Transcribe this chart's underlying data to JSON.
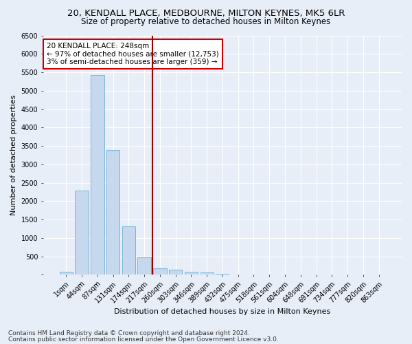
{
  "title1": "20, KENDALL PLACE, MEDBOURNE, MILTON KEYNES, MK5 6LR",
  "title2": "Size of property relative to detached houses in Milton Keynes",
  "xlabel": "Distribution of detached houses by size in Milton Keynes",
  "ylabel": "Number of detached properties",
  "categories": [
    "1sqm",
    "44sqm",
    "87sqm",
    "131sqm",
    "174sqm",
    "217sqm",
    "260sqm",
    "303sqm",
    "346sqm",
    "389sqm",
    "432sqm",
    "475sqm",
    "518sqm",
    "561sqm",
    "604sqm",
    "648sqm",
    "691sqm",
    "734sqm",
    "777sqm",
    "820sqm",
    "863sqm"
  ],
  "bar_values": [
    75,
    2280,
    5420,
    3380,
    1310,
    480,
    165,
    130,
    75,
    55,
    30,
    0,
    0,
    0,
    0,
    0,
    0,
    0,
    0,
    0,
    0
  ],
  "bar_color": "#c5d8ee",
  "bar_edge_color": "#6baed6",
  "vline_color": "#990000",
  "annotation_title": "20 KENDALL PLACE: 248sqm",
  "annotation_line1": "← 97% of detached houses are smaller (12,753)",
  "annotation_line2": "3% of semi-detached houses are larger (359) →",
  "annotation_box_color": "#ffffff",
  "annotation_box_edge": "#cc0000",
  "ylim": [
    0,
    6500
  ],
  "yticks": [
    0,
    500,
    1000,
    1500,
    2000,
    2500,
    3000,
    3500,
    4000,
    4500,
    5000,
    5500,
    6000,
    6500
  ],
  "footnote1": "Contains HM Land Registry data © Crown copyright and database right 2024.",
  "footnote2": "Contains public sector information licensed under the Open Government Licence v3.0.",
  "bg_color": "#e8eef8",
  "grid_color": "#ffffff",
  "title_fontsize": 9.5,
  "subtitle_fontsize": 8.5,
  "axis_label_fontsize": 8,
  "tick_fontsize": 7,
  "footnote_fontsize": 6.5,
  "annotation_fontsize": 7.5
}
